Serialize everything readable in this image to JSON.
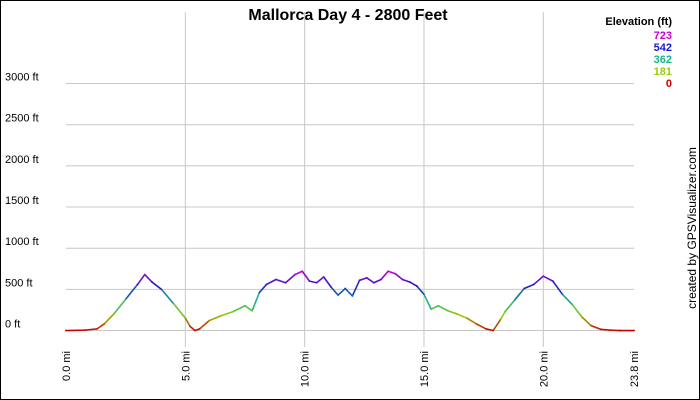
{
  "chart_data": {
    "type": "line",
    "title": "Mallorca Day 4 - 2800 Feet",
    "xlabel": "",
    "ylabel": "",
    "x_unit": "mi",
    "y_unit": "ft",
    "xlim": [
      0,
      23.8
    ],
    "ylim": [
      -200,
      3650
    ],
    "grid": true,
    "legend_placement": "top-right",
    "x_ticks": [
      {
        "value": 0,
        "label": "0.0 mi"
      },
      {
        "value": 5,
        "label": "5.0 mi"
      },
      {
        "value": 10,
        "label": "10.0 mi"
      },
      {
        "value": 15,
        "label": "15.0 mi"
      },
      {
        "value": 20,
        "label": "20.0 mi"
      },
      {
        "value": 23.8,
        "label": "23.8 mi"
      }
    ],
    "y_ticks": [
      {
        "value": 0,
        "label": "0 ft"
      },
      {
        "value": 500,
        "label": "500 ft"
      },
      {
        "value": 1000,
        "label": "1000 ft"
      },
      {
        "value": 1500,
        "label": "1500 ft"
      },
      {
        "value": 2000,
        "label": "2000 ft"
      },
      {
        "value": 2500,
        "label": "2500 ft"
      },
      {
        "value": 3000,
        "label": "3000 ft"
      }
    ],
    "color_scale": {
      "title": "Elevation (ft)",
      "entries": [
        {
          "label": "723",
          "value": 723,
          "color": "#cc00cc"
        },
        {
          "label": "542",
          "value": 542,
          "color": "#1a1acc"
        },
        {
          "label": "362",
          "value": 362,
          "color": "#19b38c"
        },
        {
          "label": "181",
          "value": 181,
          "color": "#99cc00"
        },
        {
          "label": "0",
          "value": 0,
          "color": "#cc0000"
        }
      ]
    },
    "series": [
      {
        "x": [
          0,
          0.8,
          1.3,
          1.6,
          2.0,
          2.5,
          3.0,
          3.3,
          3.6,
          4.0,
          4.5,
          5.0,
          5.2,
          5.4,
          5.6,
          6.0,
          6.5,
          7.0,
          7.5,
          7.8,
          8.1,
          8.4,
          8.8,
          9.2,
          9.6,
          9.9,
          10.2,
          10.5,
          10.8,
          11.1,
          11.4,
          11.7,
          12.0,
          12.3,
          12.6,
          12.9,
          13.2,
          13.5,
          13.8,
          14.1,
          14.4,
          14.7,
          15.0,
          15.3,
          15.6,
          16.0,
          16.4,
          16.8,
          17.2,
          17.6,
          17.9,
          18.2,
          18.4,
          18.8,
          19.2,
          19.6,
          20.0,
          20.4,
          20.8,
          21.2,
          21.6,
          22.0,
          22.4,
          22.8,
          23.2,
          23.8
        ],
        "y": [
          0,
          5,
          20,
          80,
          200,
          380,
          560,
          680,
          590,
          500,
          330,
          150,
          50,
          0,
          20,
          120,
          180,
          230,
          300,
          240,
          460,
          560,
          620,
          580,
          680,
          720,
          600,
          580,
          650,
          530,
          430,
          510,
          420,
          610,
          640,
          580,
          620,
          720,
          690,
          620,
          590,
          540,
          440,
          260,
          300,
          240,
          200,
          150,
          80,
          20,
          0,
          130,
          230,
          370,
          510,
          560,
          660,
          600,
          440,
          320,
          170,
          60,
          15,
          5,
          0,
          0
        ]
      }
    ],
    "annotations": [
      {
        "text": "created by GPSVisualizer.com",
        "placement": "right-edge, vertical"
      }
    ]
  }
}
